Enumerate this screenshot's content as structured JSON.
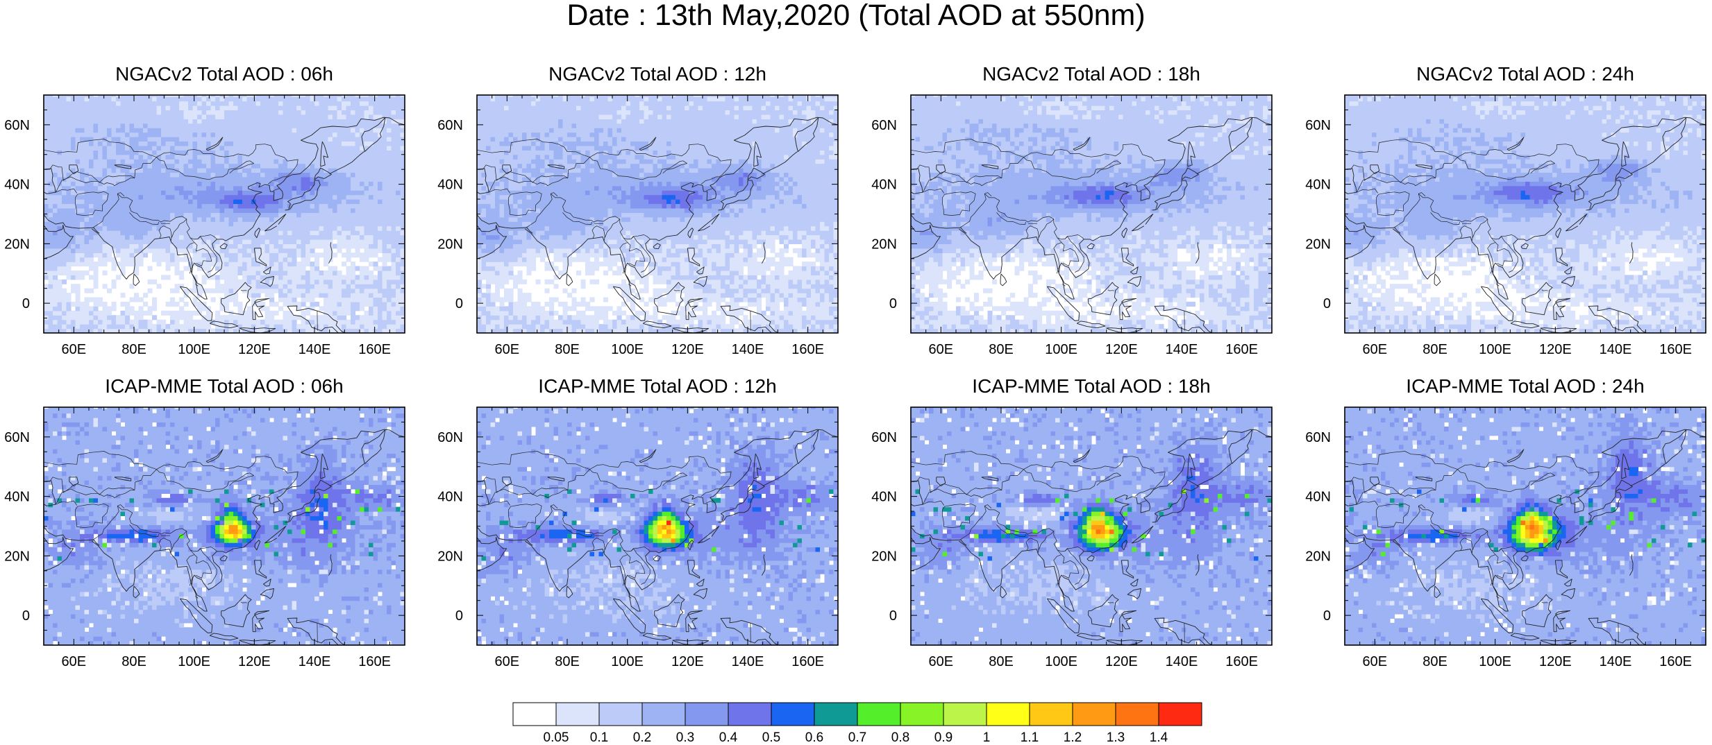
{
  "title": "Date : 13th May,2020 (Total AOD at 550nm)",
  "lat_range": [
    -10,
    70
  ],
  "lon_range": [
    50,
    170
  ],
  "lat_ticks": [
    "60N",
    "40N",
    "20N",
    "0"
  ],
  "lat_tick_values": [
    60,
    40,
    20,
    0
  ],
  "lon_ticks": [
    "60E",
    "80E",
    "100E",
    "120E",
    "140E",
    "160E"
  ],
  "lon_tick_values": [
    60,
    80,
    100,
    120,
    140,
    160
  ],
  "panels": [
    {
      "title": "NGACv2 Total AOD : 06h",
      "model": "NGACv2",
      "hour": 6
    },
    {
      "title": "NGACv2 Total AOD : 12h",
      "model": "NGACv2",
      "hour": 12
    },
    {
      "title": "NGACv2 Total AOD : 18h",
      "model": "NGACv2",
      "hour": 18
    },
    {
      "title": "NGACv2 Total AOD : 24h",
      "model": "NGACv2",
      "hour": 24
    },
    {
      "title": "ICAP-MME Total AOD : 06h",
      "model": "ICAP-MME",
      "hour": 6
    },
    {
      "title": "ICAP-MME Total AOD : 12h",
      "model": "ICAP-MME",
      "hour": 12
    },
    {
      "title": "ICAP-MME Total AOD : 18h",
      "model": "ICAP-MME",
      "hour": 18
    },
    {
      "title": "ICAP-MME Total AOD : 24h",
      "model": "ICAP-MME",
      "hour": 24
    }
  ],
  "colorbar": {
    "labels": [
      "0.05",
      "0.1",
      "0.2",
      "0.3",
      "0.4",
      "0.5",
      "0.6",
      "0.7",
      "0.8",
      "0.9",
      "1",
      "1.1",
      "1.2",
      "1.3",
      "1.4"
    ],
    "colors": [
      "#ffffff",
      "#dbe4fb",
      "#bccbf7",
      "#9db3f3",
      "#8598ef",
      "#6f74eb",
      "#1a66f2",
      "#0f9a96",
      "#54ee2a",
      "#88f428",
      "#bdf44a",
      "#ffff17",
      "#ffc814",
      "#ff9a14",
      "#ff7412",
      "#ff2a12"
    ]
  }
}
